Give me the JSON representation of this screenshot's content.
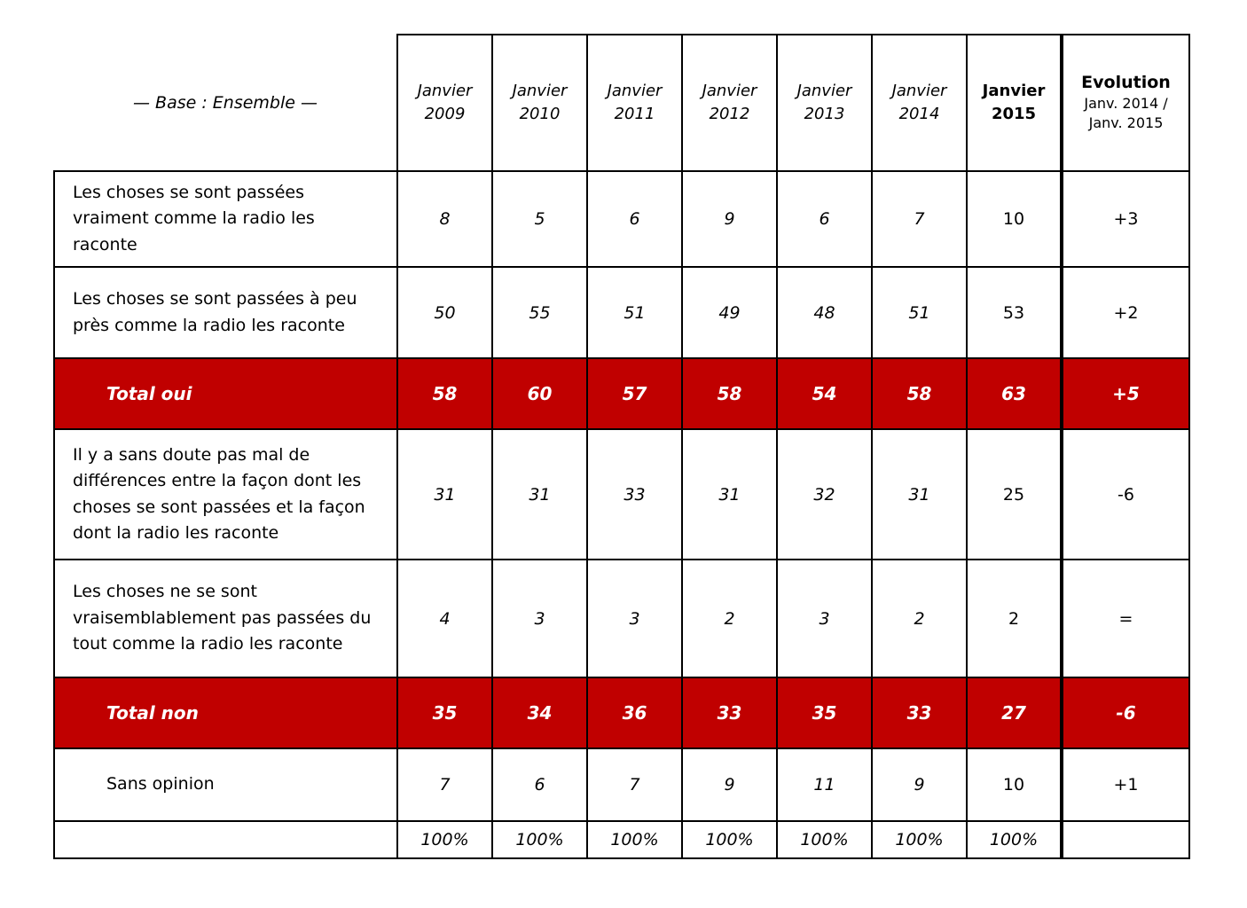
{
  "colors": {
    "total_row_bg": "#C00000",
    "total_row_text": "#FFFFFF",
    "table_border": "#000000"
  },
  "chart_data": {
    "type": "table",
    "base": "— Base : Ensemble —",
    "columns": [
      "Janvier 2009",
      "Janvier 2010",
      "Janvier 2011",
      "Janvier 2012",
      "Janvier 2013",
      "Janvier 2014",
      "Janvier 2015"
    ],
    "evolution_header": {
      "title": "Evolution",
      "subtitle": "Janv. 2014 / Janv. 2015"
    },
    "rows": [
      {
        "label": "Les choses se sont passées vraiment comme la radio les raconte",
        "values": [
          8,
          5,
          6,
          9,
          6,
          7,
          10
        ],
        "evolution": "+3",
        "style": "normal",
        "indent": false
      },
      {
        "label": "Les choses se sont passées à peu près comme la radio les raconte",
        "values": [
          50,
          55,
          51,
          49,
          48,
          51,
          53
        ],
        "evolution": "+2",
        "style": "normal",
        "indent": false
      },
      {
        "label": "Total oui",
        "values": [
          58,
          60,
          57,
          58,
          54,
          58,
          63
        ],
        "evolution": "+5",
        "style": "total",
        "indent": true
      },
      {
        "label": "Il y a sans doute pas mal de différences entre la façon dont les choses se sont passées et la façon dont la radio les raconte",
        "values": [
          31,
          31,
          33,
          31,
          32,
          31,
          25
        ],
        "evolution": "-6",
        "style": "normal",
        "indent": false
      },
      {
        "label": "Les choses ne se sont vraisemblablement pas passées du tout comme la radio les raconte",
        "values": [
          4,
          3,
          3,
          2,
          3,
          2,
          2
        ],
        "evolution": "=",
        "style": "normal",
        "indent": false
      },
      {
        "label": "Total non",
        "values": [
          35,
          34,
          36,
          33,
          35,
          33,
          27
        ],
        "evolution": "-6",
        "style": "total",
        "indent": true
      },
      {
        "label": "Sans opinion",
        "values": [
          7,
          6,
          7,
          9,
          11,
          9,
          10
        ],
        "evolution": "+1",
        "style": "normal",
        "indent": true
      },
      {
        "label": "",
        "values": [
          "100%",
          "100%",
          "100%",
          "100%",
          "100%",
          "100%",
          "100%"
        ],
        "evolution": "",
        "style": "footer",
        "indent": false
      }
    ]
  }
}
